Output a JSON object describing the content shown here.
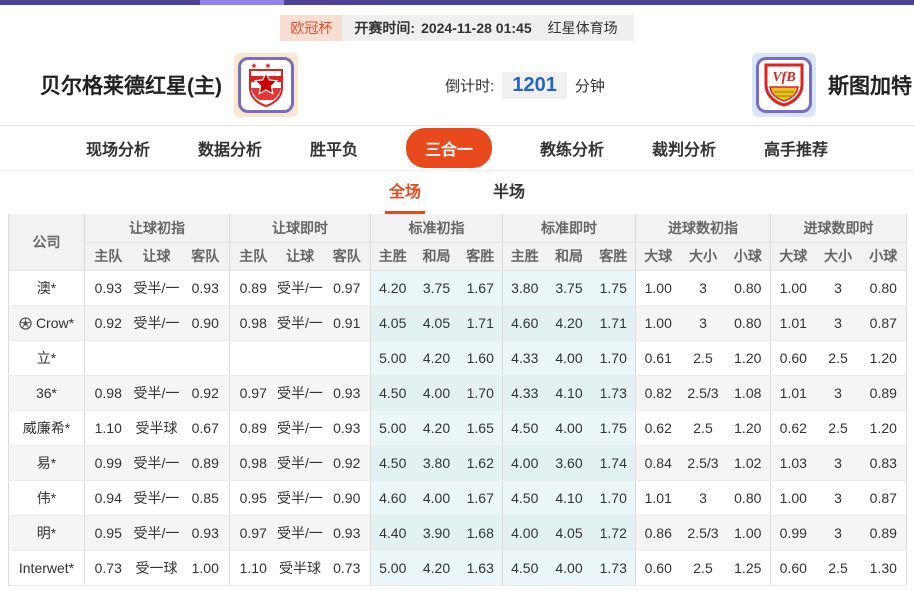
{
  "topbar": {
    "bar_color": "#4a4096",
    "thumb_color": "#8f83ea"
  },
  "header": {
    "league_badge": "欧冠杯",
    "kickoff_label": "开赛时间:",
    "kickoff_time": "2024-11-28 01:45",
    "venue": "红星体育场",
    "home_team": "贝尔格莱德红星(主)",
    "away_team": "斯图加特",
    "countdown_label": "倒计时:",
    "countdown_value": "1201",
    "countdown_unit": "分钟"
  },
  "nav": {
    "items": [
      {
        "label": "现场分析",
        "active": false
      },
      {
        "label": "数据分析",
        "active": false
      },
      {
        "label": "胜平负",
        "active": false
      },
      {
        "label": "三合一",
        "active": true
      },
      {
        "label": "教练分析",
        "active": false
      },
      {
        "label": "裁判分析",
        "active": false
      },
      {
        "label": "高手推荐",
        "active": false
      }
    ],
    "accent_color": "#e8491d"
  },
  "subtabs": {
    "items": [
      {
        "label": "全场",
        "active": true
      },
      {
        "label": "半场",
        "active": false
      }
    ]
  },
  "table": {
    "corner_header": "公司",
    "groups": [
      {
        "label": "让球初指",
        "cols": [
          "主队",
          "让球",
          "客队"
        ],
        "live": false,
        "tint": false
      },
      {
        "label": "让球即时",
        "cols": [
          "主队",
          "让球",
          "客队"
        ],
        "live": true,
        "tint": false
      },
      {
        "label": "标准初指",
        "cols": [
          "主胜",
          "和局",
          "客胜"
        ],
        "live": false,
        "tint": true
      },
      {
        "label": "标准即时",
        "cols": [
          "主胜",
          "和局",
          "客胜"
        ],
        "live": true,
        "tint": true
      },
      {
        "label": "进球数初指",
        "cols": [
          "大球",
          "大小",
          "小球"
        ],
        "live": false,
        "tint": false
      },
      {
        "label": "进球数即时",
        "cols": [
          "大球",
          "大小",
          "小球"
        ],
        "live": true,
        "tint": false
      }
    ],
    "rows": [
      {
        "company": "澳*",
        "icon": "",
        "cells": [
          [
            "0.93",
            "受半/一",
            "0.93"
          ],
          [
            "0.89",
            "受半/一",
            "0.97"
          ],
          [
            "4.20",
            "3.75",
            "1.67"
          ],
          [
            "3.80",
            "3.75",
            "1.75"
          ],
          [
            "1.00",
            "3",
            "0.80"
          ],
          [
            "1.00",
            "3",
            "0.80"
          ]
        ]
      },
      {
        "company": "Crow*",
        "icon": "soccer-ball-icon",
        "cells": [
          [
            "0.92",
            "受半/一",
            "0.90"
          ],
          [
            "0.98",
            "受半/一",
            "0.91"
          ],
          [
            "4.05",
            "4.05",
            "1.71"
          ],
          [
            "4.60",
            "4.20",
            "1.71"
          ],
          [
            "1.00",
            "3",
            "0.80"
          ],
          [
            "1.01",
            "3",
            "0.87"
          ]
        ]
      },
      {
        "company": "立*",
        "icon": "",
        "cells": [
          [
            "",
            "",
            ""
          ],
          [
            "",
            "",
            ""
          ],
          [
            "5.00",
            "4.20",
            "1.60"
          ],
          [
            "4.33",
            "4.00",
            "1.70"
          ],
          [
            "0.61",
            "2.5",
            "1.20"
          ],
          [
            "0.60",
            "2.5",
            "1.20"
          ]
        ]
      },
      {
        "company": "36*",
        "icon": "",
        "cells": [
          [
            "0.98",
            "受半/一",
            "0.92"
          ],
          [
            "0.97",
            "受半/一",
            "0.93"
          ],
          [
            "4.50",
            "4.00",
            "1.70"
          ],
          [
            "4.33",
            "4.10",
            "1.73"
          ],
          [
            "0.82",
            "2.5/3",
            "1.08"
          ],
          [
            "1.01",
            "3",
            "0.89"
          ]
        ]
      },
      {
        "company": "威廉希*",
        "icon": "",
        "cells": [
          [
            "1.10",
            "受半球",
            "0.67"
          ],
          [
            "0.89",
            "受半/一",
            "0.93"
          ],
          [
            "5.00",
            "4.20",
            "1.65"
          ],
          [
            "4.50",
            "4.00",
            "1.75"
          ],
          [
            "0.62",
            "2.5",
            "1.20"
          ],
          [
            "0.62",
            "2.5",
            "1.20"
          ]
        ]
      },
      {
        "company": "易*",
        "icon": "",
        "cells": [
          [
            "0.99",
            "受半/一",
            "0.89"
          ],
          [
            "0.98",
            "受半/一",
            "0.92"
          ],
          [
            "4.50",
            "3.80",
            "1.62"
          ],
          [
            "4.00",
            "3.60",
            "1.74"
          ],
          [
            "0.84",
            "2.5/3",
            "1.02"
          ],
          [
            "1.03",
            "3",
            "0.83"
          ]
        ]
      },
      {
        "company": "伟*",
        "icon": "",
        "cells": [
          [
            "0.94",
            "受半/一",
            "0.85"
          ],
          [
            "0.95",
            "受半/一",
            "0.90"
          ],
          [
            "4.60",
            "4.00",
            "1.67"
          ],
          [
            "4.50",
            "4.10",
            "1.70"
          ],
          [
            "1.01",
            "3",
            "0.80"
          ],
          [
            "1.00",
            "3",
            "0.87"
          ]
        ]
      },
      {
        "company": "明*",
        "icon": "",
        "cells": [
          [
            "0.95",
            "受半/一",
            "0.93"
          ],
          [
            "0.97",
            "受半/一",
            "0.93"
          ],
          [
            "4.40",
            "3.90",
            "1.68"
          ],
          [
            "4.00",
            "4.05",
            "1.72"
          ],
          [
            "0.86",
            "2.5/3",
            "1.00"
          ],
          [
            "0.99",
            "3",
            "0.89"
          ]
        ]
      },
      {
        "company": "Interwet*",
        "icon": "",
        "cells": [
          [
            "0.73",
            "受一球",
            "1.00"
          ],
          [
            "1.10",
            "受半球",
            "0.73"
          ],
          [
            "5.00",
            "4.20",
            "1.63"
          ],
          [
            "4.50",
            "4.00",
            "1.73"
          ],
          [
            "0.60",
            "2.5",
            "1.25"
          ],
          [
            "0.60",
            "2.5",
            "1.30"
          ]
        ]
      }
    ]
  },
  "colors": {
    "accent_orange": "#e8491d",
    "live_blue": "#2166c0",
    "tint_cyan": "#eaf6f7",
    "row_alt": "#f5f5f5"
  }
}
